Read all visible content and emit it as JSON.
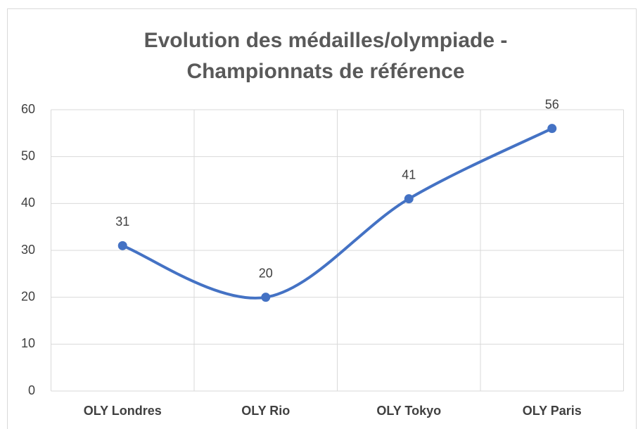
{
  "chart_data": {
    "type": "line",
    "title": "Evolution des médailles/olympiade - Championnats de référence",
    "categories": [
      "OLY Londres",
      "OLY Rio",
      "OLY Tokyo",
      "OLY Paris"
    ],
    "series": [
      {
        "color": "#4472c4",
        "values": [
          31,
          20,
          41,
          56
        ]
      }
    ],
    "ylim": [
      0,
      60
    ],
    "yticks": [
      0,
      10,
      20,
      30,
      40,
      50,
      60
    ],
    "grid": true,
    "smooth": true,
    "data_labels": true
  }
}
